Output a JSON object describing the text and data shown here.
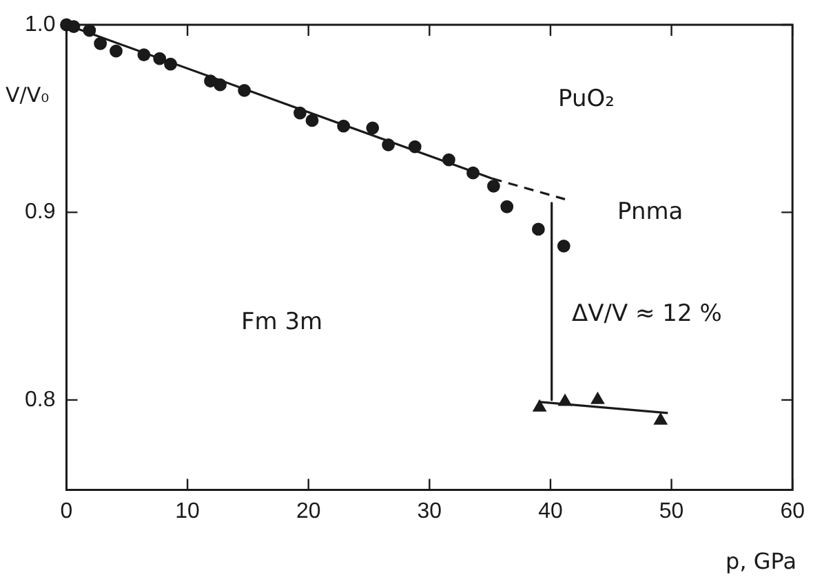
{
  "chart_data": {
    "type": "scatter",
    "xlabel": "p, GPa",
    "ylabel": "V/V₀",
    "xlim": [
      0,
      60
    ],
    "xticks": [
      0,
      10,
      20,
      30,
      40,
      50,
      60
    ],
    "ylim": [
      0.752,
      1.0
    ],
    "yticks": [
      {
        "value": 0.8,
        "label": "0.8"
      },
      {
        "value": 0.9,
        "label": "0.9"
      },
      {
        "value": 1.0,
        "label": "1.0"
      }
    ],
    "grid": false,
    "legend": false,
    "series": [
      {
        "type": "scatter",
        "marker": "circle",
        "color": "#1a1a1a",
        "x": [
          0,
          0.6,
          1.9,
          2.8,
          4.1,
          6.4,
          7.7,
          8.6,
          11.9,
          12.7,
          14.7,
          19.3,
          20.3,
          22.9,
          25.3,
          26.6,
          28.8,
          31.6,
          33.6,
          35.3,
          36.4,
          39.0,
          41.1
        ],
        "values": [
          1.0,
          0.999,
          0.997,
          0.99,
          0.986,
          0.984,
          0.982,
          0.979,
          0.97,
          0.968,
          0.965,
          0.953,
          0.949,
          0.946,
          0.945,
          0.936,
          0.935,
          0.928,
          0.921,
          0.914,
          0.903,
          0.891,
          0.882
        ]
      },
      {
        "type": "scatter",
        "marker": "triangle",
        "color": "#1a1a1a",
        "x": [
          39.1,
          41.2,
          43.9,
          49.1
        ],
        "values": [
          0.796,
          0.799,
          0.8,
          0.789
        ]
      },
      {
        "type": "line",
        "marker": "none",
        "line_style": "solid",
        "color": "#1a1a1a",
        "x": [
          0,
          35.2
        ],
        "values": [
          1.0,
          0.918
        ]
      },
      {
        "type": "line",
        "marker": "none",
        "line_style": "dashed",
        "color": "#1a1a1a",
        "x": [
          35.2,
          41.2
        ],
        "values": [
          0.918,
          0.907
        ]
      },
      {
        "type": "line",
        "marker": "none",
        "line_style": "solid",
        "color": "#1a1a1a",
        "x": [
          39.0,
          49.7
        ],
        "values": [
          0.799,
          0.793
        ]
      },
      {
        "type": "line",
        "marker": "none",
        "line_style": "solid",
        "color": "#1a1a1a",
        "x": [
          40.1,
          40.1
        ],
        "values": [
          0.905,
          0.8
        ]
      }
    ],
    "annotations": [
      "PuO₂",
      "Pnma",
      "Fm 3m",
      "ΔV/V ≈ 12 %"
    ]
  }
}
